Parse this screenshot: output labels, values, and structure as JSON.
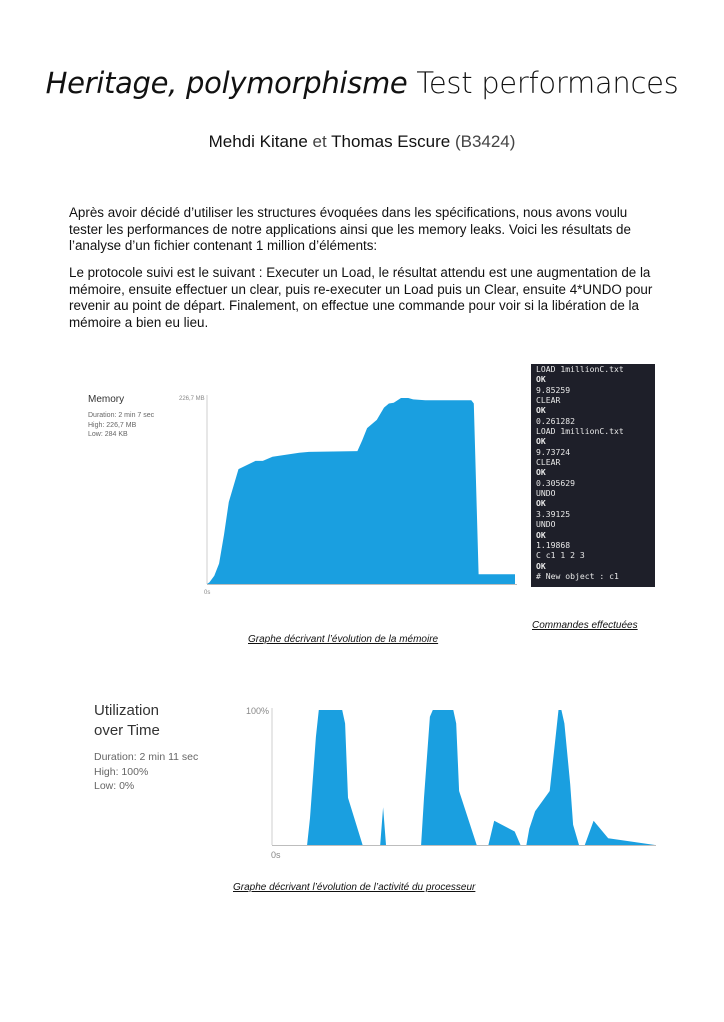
{
  "header": {
    "title_italic": "Heritage, polymorphisme",
    "title_upright": "Test performances",
    "author1": "Mehdi Kitane",
    "author_sep": "et",
    "author2": "Thomas Escure",
    "group": "(B3424)"
  },
  "body": {
    "paragraph1": "Après avoir décidé d’utiliser les structures évoquées dans les spécifications, nous avons voulu tester les performances de notre applications ainsi que les memory leaks. Voici les résultats de l’analyse d’un fichier contenant 1 million d’éléments:",
    "paragraph2": "Le protocole suivi est le suivant : Executer un Load, le résultat attendu est une augmentation de la mémoire, ensuite effectuer un clear, puis re-executer un Load puis un Clear, ensuite 4*UNDO pour revenir au point de départ. Finalement, on effectue une commande pour voir si la libération de la mémoire a bien eu lieu."
  },
  "memory_panel": {
    "title": "Memory",
    "duration": "Duration: 2 min 7 sec",
    "high": "High: 226,7 MB",
    "low": "Low: 284 KB",
    "caption": "Graphe décrivant l’évolution de la mémoire"
  },
  "terminal": {
    "lines": [
      "LOAD 1millionC.txt",
      "OK",
      "9.85259",
      "CLEAR",
      "OK",
      "0.261282",
      "LOAD 1millionC.txt",
      "OK",
      "9.73724",
      "CLEAR",
      "OK",
      "0.305629",
      "UNDO",
      "OK",
      "3.39125",
      "UNDO",
      "OK",
      "1.19868",
      "C c1 1 2 3",
      "OK",
      "# New object : c1"
    ],
    "caption": "Commandes effectuées",
    "background": "#1e1f29"
  },
  "cpu_panel": {
    "title_line1": "Utilization",
    "title_line2": "over Time",
    "duration": "Duration: 2 min 11 sec",
    "high": "High: 100%",
    "low": "Low: 0%",
    "caption": "Graphe décrivant l’évolution de l’activité du processeur"
  },
  "chart_data": [
    {
      "type": "area",
      "ylabel_top": "226,7 MB",
      "xlabel_start": "0s",
      "ymax": 226.7,
      "unit": "MB",
      "color": "#1a9fe0",
      "x": [
        0,
        1,
        3,
        5,
        7,
        9,
        13,
        20,
        23,
        27,
        38,
        42,
        62,
        64,
        66,
        70,
        73,
        75,
        77,
        80,
        83,
        85,
        90,
        105,
        109,
        110,
        112,
        113,
        115,
        118,
        123,
        127
      ],
      "y": [
        0,
        2,
        10,
        25,
        60,
        100,
        140,
        150,
        150,
        155,
        160,
        161,
        162,
        175,
        190,
        200,
        215,
        220,
        221,
        226.7,
        226.7,
        225,
        224,
        224,
        224,
        220,
        12,
        12,
        12,
        12,
        12,
        12
      ]
    },
    {
      "type": "area",
      "ylabel_top": "100%",
      "xlabel_start": "0s",
      "ymax": 100,
      "unit": "%",
      "color": "#1a9fe0",
      "x": [
        0,
        12,
        13,
        15,
        16,
        24,
        25,
        26,
        31,
        36,
        37,
        38,
        39,
        40,
        51,
        52,
        54,
        55,
        62,
        63,
        64,
        70,
        71,
        72,
        74,
        76,
        83,
        84,
        85,
        86,
        87,
        88,
        90,
        95,
        97,
        98,
        99,
        100,
        102,
        103,
        105,
        107,
        110,
        115,
        131
      ],
      "y": [
        0,
        0,
        20,
        80,
        100,
        100,
        90,
        35,
        0,
        0,
        0,
        28,
        0,
        0,
        0,
        35,
        95,
        100,
        100,
        90,
        40,
        0,
        0,
        0,
        0,
        18,
        10,
        5,
        0,
        0,
        0,
        12,
        25,
        40,
        80,
        100,
        100,
        90,
        45,
        15,
        0,
        0,
        18,
        5,
        0
      ]
    }
  ]
}
